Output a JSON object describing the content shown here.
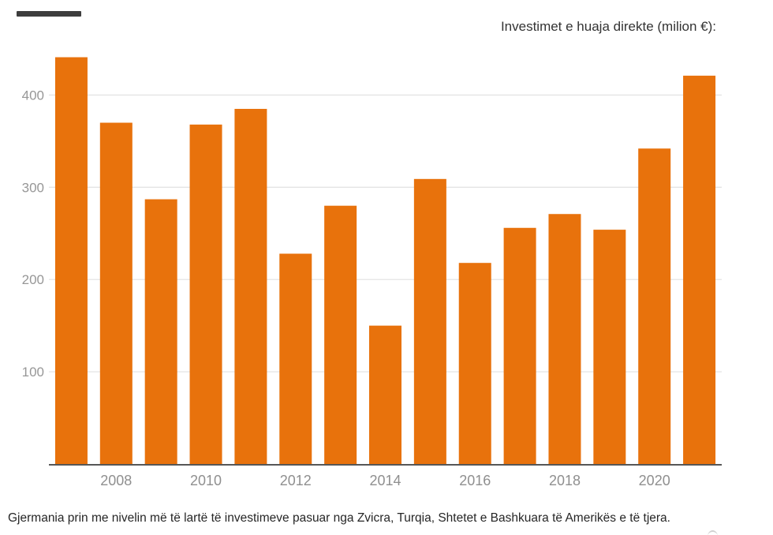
{
  "header": {
    "title": "Investimet e huaja direkte (milion €):"
  },
  "chart_data": {
    "type": "bar",
    "title": "Investimet e huaja direkte (milion €):",
    "unit": "milion €",
    "categories": [
      "2007",
      "2008",
      "2009",
      "2010",
      "2011",
      "2012",
      "2013",
      "2014",
      "2015",
      "2016",
      "2017",
      "2018",
      "2019",
      "2020",
      "2021"
    ],
    "values": [
      441,
      370,
      287,
      368,
      385,
      228,
      280,
      150,
      309,
      218,
      256,
      271,
      254,
      342,
      421
    ],
    "xlabel": "",
    "ylabel": "",
    "ylim": [
      0,
      450
    ],
    "yticks": [
      100,
      200,
      300,
      400
    ],
    "x_tick_labels": [
      "2008",
      "2010",
      "2012",
      "2014",
      "2016",
      "2018",
      "2020"
    ],
    "grid": true,
    "legend_position": "none",
    "bar_color": "#e8720c",
    "grid_color": "#e4e4e4",
    "axis_color": "#565656",
    "tick_label_color": "#979797"
  },
  "caption": {
    "text": "Gjermania prin me nivelin më të lartë të investimeve pasuar nga Zvicra, Turqia, Shtetet e Bashkuara të Amerikës e të tjera."
  }
}
